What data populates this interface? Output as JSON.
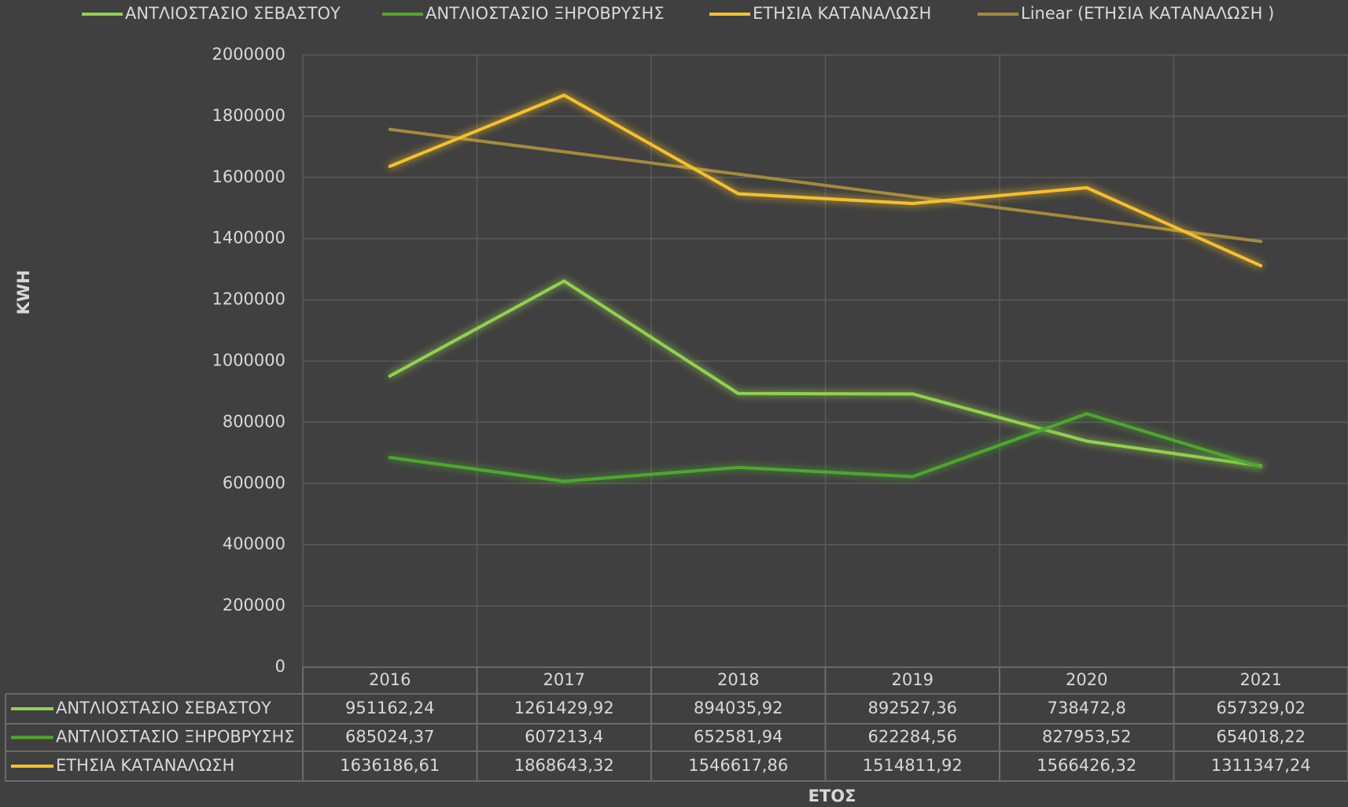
{
  "chart_data": {
    "type": "line",
    "categories": [
      "2016",
      "2017",
      "2018",
      "2019",
      "2020",
      "2021"
    ],
    "series": [
      {
        "name": "ΑΝΤΛΙΟΣΤΑΣΙΟ ΣΕΒΑΣΤΟΥ",
        "color": "#92d050",
        "values": [
          951162.24,
          1261429.92,
          894035.92,
          892527.36,
          738472.8,
          657329.02
        ],
        "value_labels": [
          "951162,24",
          "1261429,92",
          "894035,92",
          "892527,36",
          "738472,8",
          "657329,02"
        ]
      },
      {
        "name": "ΑΝΤΛΙΟΣΤΑΣΙΟ ΞΗΡΟΒΡΥΣΗΣ",
        "color": "#4ea72e",
        "values": [
          685024.37,
          607213.4,
          652581.94,
          622284.56,
          827953.52,
          654018.22
        ],
        "value_labels": [
          "685024,37",
          "607213,4",
          "652581,94",
          "622284,56",
          "827953,52",
          "654018,22"
        ]
      },
      {
        "name": "ΕΤΗΣΙΑ ΚΑΤΑΝΑΛΩΣΗ",
        "color": "#f5c02a",
        "values": [
          1636186.61,
          1868643.32,
          1546617.86,
          1514811.92,
          1566426.32,
          1311347.24
        ],
        "value_labels": [
          "1636186,61",
          "1868643,32",
          "1546617,86",
          "1514811,92",
          "1566426,32",
          "1311347,24"
        ]
      },
      {
        "name": "Linear (ΕΤΗΣΙΑ ΚΑΤΑΝΑΛΩΣΗ )",
        "color": "#a38b3c",
        "values": [
          1757053,
          1683834,
          1610615,
          1537396,
          1464177,
          1390958
        ]
      }
    ],
    "y_label": "KWH",
    "x_label": "ΕΤΟΣ",
    "ylim": [
      0,
      2000000
    ],
    "yticks": [
      0,
      200000,
      400000,
      600000,
      800000,
      1000000,
      1200000,
      1400000,
      1600000,
      1800000,
      2000000
    ],
    "grid": true,
    "legend": "top"
  }
}
